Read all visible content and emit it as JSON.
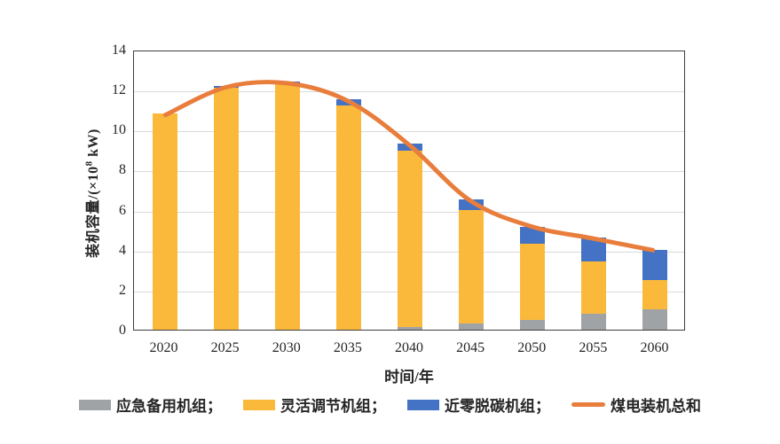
{
  "chart_data": {
    "type": "bar",
    "subtype": "stacked-bars-with-total-line",
    "categories": [
      "2020",
      "2025",
      "2030",
      "2035",
      "2040",
      "2045",
      "2050",
      "2055",
      "2060"
    ],
    "series": [
      {
        "name": "应急备用机组",
        "type": "bar",
        "color": "#A0A3A6",
        "values": [
          0,
          0,
          0,
          0,
          0.15,
          0.3,
          0.5,
          0.8,
          1.0
        ]
      },
      {
        "name": "灵活调节机组",
        "type": "bar",
        "color": "#FBB93C",
        "values": [
          10.8,
          12.1,
          12.3,
          11.2,
          8.8,
          5.7,
          3.8,
          2.6,
          1.5
        ]
      },
      {
        "name": "近零脱碳机组",
        "type": "bar",
        "color": "#4472C4",
        "values": [
          0,
          0.1,
          0.1,
          0.3,
          0.35,
          0.5,
          0.85,
          1.2,
          1.5
        ]
      },
      {
        "name": "煤电装机总和",
        "type": "line",
        "color": "#E87D3C",
        "values": [
          10.8,
          12.2,
          12.4,
          11.5,
          9.3,
          6.5,
          5.2,
          4.6,
          4.0
        ]
      }
    ],
    "title": "",
    "xlabel": "时间/年",
    "ylabel": "装机容量/(×10⁸ kW)",
    "ylim": [
      0,
      14
    ],
    "ytick_step": 2,
    "y_ticks": [
      "0",
      "2",
      "4",
      "6",
      "8",
      "10",
      "12",
      "14"
    ],
    "grid": true,
    "legend_position": "bottom"
  },
  "axes": {
    "x_title": "时间/年",
    "y_title_prefix": "装机容量/(×10",
    "y_title_sup": "8",
    "y_title_suffix": " kW)"
  },
  "legend": {
    "items": [
      {
        "label": "应急备用机组；",
        "swatch": "bar",
        "color": "#A0A3A6"
      },
      {
        "label": "灵活调节机组；",
        "swatch": "bar",
        "color": "#FBB93C"
      },
      {
        "label": "近零脱碳机组；",
        "swatch": "bar",
        "color": "#4472C4"
      },
      {
        "label": "煤电装机总和",
        "swatch": "line",
        "color": "#E87D3C"
      }
    ]
  },
  "colors": {
    "grid": "#d9d9d9",
    "axis_border": "#3f3f3f",
    "text": "#262626",
    "background": "#ffffff"
  }
}
